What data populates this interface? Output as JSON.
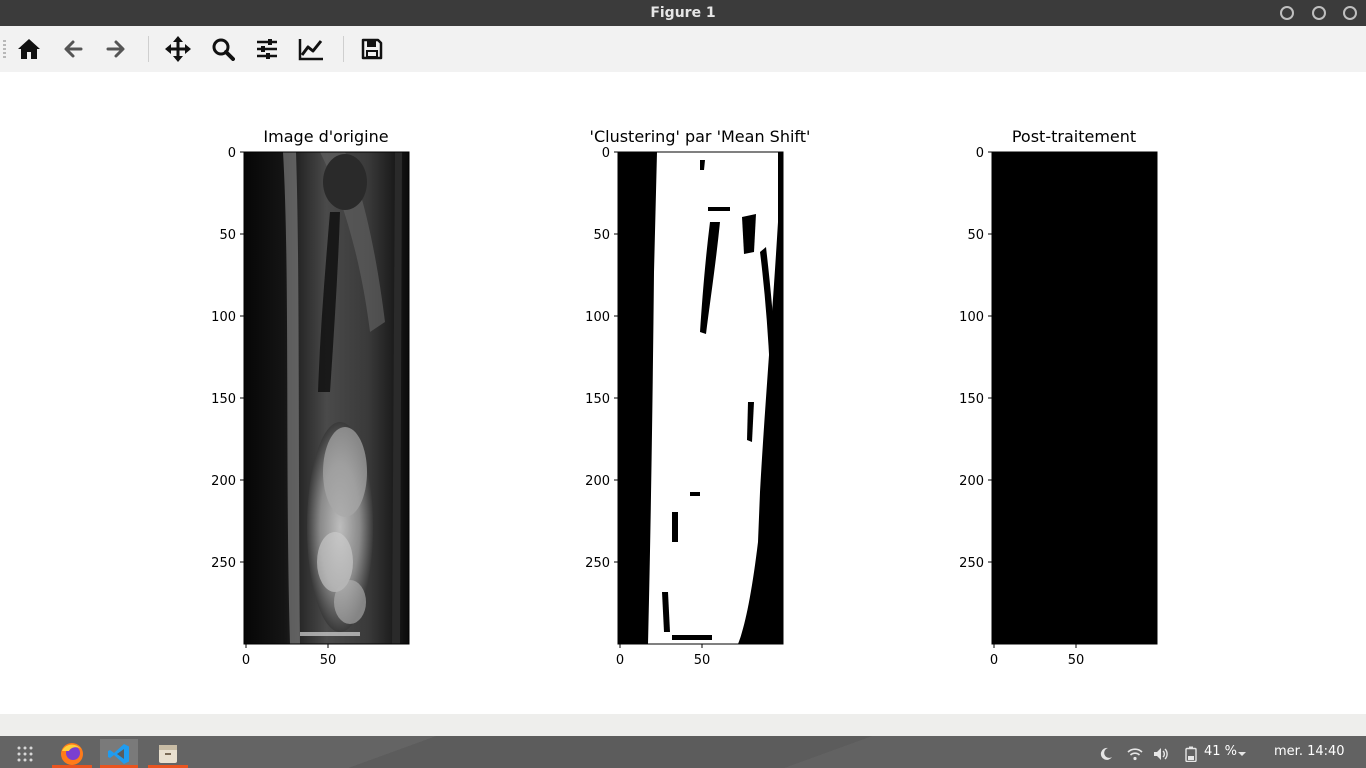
{
  "window": {
    "title": "Figure 1"
  },
  "toolbar": {
    "buttons": [
      {
        "name": "home-icon",
        "tooltip": "Home"
      },
      {
        "name": "back-arrow-icon",
        "tooltip": "Back"
      },
      {
        "name": "forward-arrow-icon",
        "tooltip": "Forward"
      },
      {
        "name": "pan-icon",
        "tooltip": "Pan"
      },
      {
        "name": "zoom-icon",
        "tooltip": "Zoom"
      },
      {
        "name": "subplots-icon",
        "tooltip": "Subplots"
      },
      {
        "name": "customize-icon",
        "tooltip": "Customize"
      },
      {
        "name": "save-icon",
        "tooltip": "Save"
      }
    ]
  },
  "figure": {
    "subplots": [
      {
        "title": "Image d'origine",
        "yticks": [
          "0",
          "50",
          "100",
          "150",
          "200",
          "250"
        ],
        "xticks": [
          "0",
          "50"
        ]
      },
      {
        "title": "'Clustering' par 'Mean Shift'",
        "yticks": [
          "0",
          "50",
          "100",
          "150",
          "200",
          "250"
        ],
        "xticks": [
          "0",
          "50"
        ]
      },
      {
        "title": "Post-traitement",
        "yticks": [
          "0",
          "50",
          "100",
          "150",
          "200",
          "250"
        ],
        "xticks": [
          "0",
          "50"
        ]
      }
    ]
  },
  "taskbar": {
    "apps": [
      {
        "name": "app-grid-icon"
      },
      {
        "name": "firefox-icon"
      },
      {
        "name": "vscode-icon"
      },
      {
        "name": "files-icon"
      }
    ],
    "tray": {
      "battery": "41 %",
      "clock": "mer. 14:40"
    }
  },
  "colors": {
    "titlebar": "#3b3b3b",
    "toolbar": "#f2f2f2",
    "taskbar": "#5c5c5c",
    "active_indicator": "#e95420"
  }
}
